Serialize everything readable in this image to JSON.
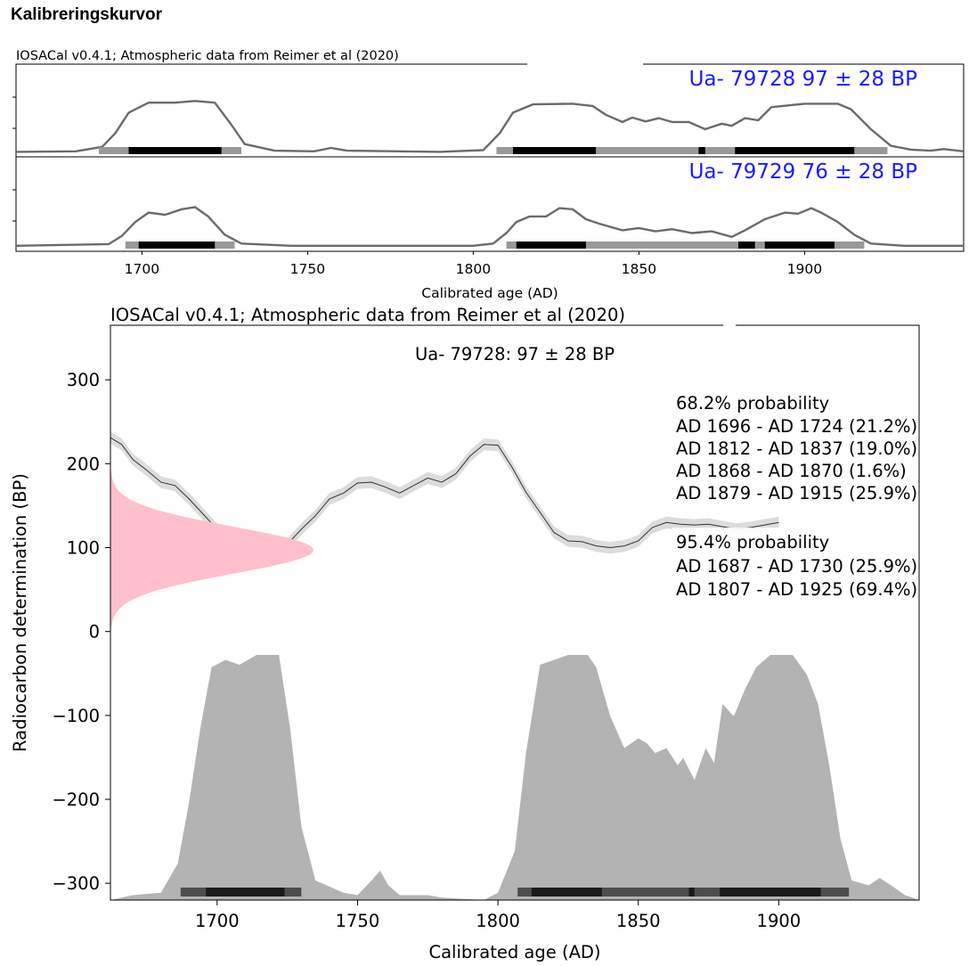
{
  "page": {
    "heading": "Kalibreringskurvor"
  },
  "chart_data": [
    {
      "type": "area",
      "title": "IOSACal v0.4.1; Atmospheric data from Reimer et al (2020)",
      "xlabel": "Calibrated age (AD)",
      "ylabel": "",
      "xlim": [
        1662,
        1948
      ],
      "x_ticks": [
        1700,
        1750,
        1800,
        1850,
        1900
      ],
      "grid": false,
      "panels": [
        {
          "label": "Ua- 79728 97 ± 28 BP",
          "label_color": "#1a1aff",
          "curve": [
            [
              1662,
              0.01
            ],
            [
              1680,
              0.02
            ],
            [
              1688,
              0.1
            ],
            [
              1692,
              0.35
            ],
            [
              1696,
              0.72
            ],
            [
              1702,
              0.9
            ],
            [
              1710,
              0.9
            ],
            [
              1716,
              0.93
            ],
            [
              1722,
              0.9
            ],
            [
              1727,
              0.5
            ],
            [
              1731,
              0.15
            ],
            [
              1740,
              0.03
            ],
            [
              1752,
              0.02
            ],
            [
              1757,
              0.08
            ],
            [
              1762,
              0.03
            ],
            [
              1790,
              0.01
            ],
            [
              1803,
              0.04
            ],
            [
              1808,
              0.35
            ],
            [
              1812,
              0.72
            ],
            [
              1818,
              0.87
            ],
            [
              1830,
              0.88
            ],
            [
              1836,
              0.84
            ],
            [
              1840,
              0.68
            ],
            [
              1845,
              0.55
            ],
            [
              1848,
              0.63
            ],
            [
              1852,
              0.56
            ],
            [
              1856,
              0.62
            ],
            [
              1860,
              0.55
            ],
            [
              1865,
              0.55
            ],
            [
              1870,
              0.42
            ],
            [
              1875,
              0.52
            ],
            [
              1878,
              0.48
            ],
            [
              1882,
              0.62
            ],
            [
              1886,
              0.58
            ],
            [
              1890,
              0.82
            ],
            [
              1900,
              0.88
            ],
            [
              1910,
              0.88
            ],
            [
              1914,
              0.78
            ],
            [
              1920,
              0.42
            ],
            [
              1926,
              0.12
            ],
            [
              1932,
              0.05
            ],
            [
              1938,
              0.03
            ],
            [
              1942,
              0.06
            ],
            [
              1948,
              0.02
            ]
          ],
          "range_68": [
            [
              1696,
              1724
            ],
            [
              1812,
              1837
            ],
            [
              1868,
              1870
            ],
            [
              1879,
              1915
            ]
          ],
          "range_95": [
            [
              1687,
              1730
            ],
            [
              1807,
              1925
            ]
          ]
        },
        {
          "label": "Ua- 79729 76 ± 28 BP",
          "label_color": "#1a1aff",
          "curve": [
            [
              1662,
              0.02
            ],
            [
              1690,
              0.05
            ],
            [
              1694,
              0.2
            ],
            [
              1698,
              0.45
            ],
            [
              1702,
              0.62
            ],
            [
              1707,
              0.58
            ],
            [
              1712,
              0.68
            ],
            [
              1716,
              0.72
            ],
            [
              1720,
              0.55
            ],
            [
              1725,
              0.22
            ],
            [
              1730,
              0.06
            ],
            [
              1745,
              0.02
            ],
            [
              1800,
              0.02
            ],
            [
              1806,
              0.06
            ],
            [
              1810,
              0.25
            ],
            [
              1813,
              0.45
            ],
            [
              1817,
              0.55
            ],
            [
              1822,
              0.55
            ],
            [
              1826,
              0.7
            ],
            [
              1830,
              0.68
            ],
            [
              1834,
              0.5
            ],
            [
              1838,
              0.42
            ],
            [
              1845,
              0.3
            ],
            [
              1850,
              0.34
            ],
            [
              1855,
              0.28
            ],
            [
              1860,
              0.32
            ],
            [
              1866,
              0.25
            ],
            [
              1872,
              0.28
            ],
            [
              1878,
              0.18
            ],
            [
              1882,
              0.3
            ],
            [
              1888,
              0.5
            ],
            [
              1894,
              0.62
            ],
            [
              1898,
              0.6
            ],
            [
              1902,
              0.7
            ],
            [
              1905,
              0.62
            ],
            [
              1910,
              0.45
            ],
            [
              1915,
              0.22
            ],
            [
              1920,
              0.06
            ],
            [
              1930,
              0.02
            ],
            [
              1948,
              0.02
            ]
          ],
          "range_68": [
            [
              1699,
              1722
            ],
            [
              1813,
              1834
            ],
            [
              1880,
              1885
            ],
            [
              1888,
              1909
            ]
          ],
          "range_95": [
            [
              1695,
              1728
            ],
            [
              1810,
              1918
            ]
          ]
        }
      ]
    },
    {
      "type": "area",
      "title": "IOSACal v0.4.1; Atmospheric data from Reimer et al (2020)",
      "subtitle": "Ua- 79728: 97 ± 28 BP",
      "xlabel": "Calibrated age (AD)",
      "ylabel": "Radiocarbon determination (BP)",
      "xlim": [
        1662,
        1950
      ],
      "ylim": [
        -320,
        365
      ],
      "x_ticks": [
        1700,
        1750,
        1800,
        1850,
        1900
      ],
      "y_ticks": [
        300,
        200,
        100,
        0,
        -100,
        -200,
        -300
      ],
      "grid": false,
      "measurement": {
        "mean_bp": 97,
        "sigma": 28,
        "color": "#ffc0cb"
      },
      "calibration_curve": [
        [
          1662,
          231
        ],
        [
          1666,
          223
        ],
        [
          1670,
          205
        ],
        [
          1675,
          192
        ],
        [
          1680,
          178
        ],
        [
          1685,
          174
        ],
        [
          1690,
          158
        ],
        [
          1695,
          140
        ],
        [
          1700,
          122
        ],
        [
          1705,
          108
        ],
        [
          1710,
          106
        ],
        [
          1715,
          101
        ],
        [
          1720,
          96
        ],
        [
          1725,
          104
        ],
        [
          1730,
          122
        ],
        [
          1735,
          138
        ],
        [
          1740,
          158
        ],
        [
          1745,
          165
        ],
        [
          1750,
          177
        ],
        [
          1755,
          178
        ],
        [
          1760,
          172
        ],
        [
          1765,
          165
        ],
        [
          1770,
          174
        ],
        [
          1775,
          183
        ],
        [
          1780,
          178
        ],
        [
          1785,
          188
        ],
        [
          1790,
          209
        ],
        [
          1795,
          223
        ],
        [
          1800,
          222
        ],
        [
          1805,
          196
        ],
        [
          1810,
          166
        ],
        [
          1815,
          142
        ],
        [
          1820,
          118
        ],
        [
          1825,
          108
        ],
        [
          1830,
          107
        ],
        [
          1835,
          102
        ],
        [
          1840,
          100
        ],
        [
          1845,
          102
        ],
        [
          1850,
          108
        ],
        [
          1855,
          124
        ],
        [
          1860,
          130
        ],
        [
          1865,
          128
        ],
        [
          1870,
          127
        ],
        [
          1875,
          128
        ],
        [
          1880,
          125
        ],
        [
          1885,
          122
        ],
        [
          1890,
          124
        ],
        [
          1895,
          127
        ],
        [
          1900,
          130
        ]
      ],
      "probability_distribution": [
        [
          1662,
          0
        ],
        [
          1670,
          0.02
        ],
        [
          1680,
          0.03
        ],
        [
          1686,
          0.15
        ],
        [
          1690,
          0.4
        ],
        [
          1694,
          0.7
        ],
        [
          1698,
          0.95
        ],
        [
          1703,
          0.98
        ],
        [
          1708,
          0.96
        ],
        [
          1714,
          1.0
        ],
        [
          1722,
          1.0
        ],
        [
          1726,
          0.7
        ],
        [
          1730,
          0.3
        ],
        [
          1735,
          0.08
        ],
        [
          1745,
          0.03
        ],
        [
          1750,
          0.02
        ],
        [
          1755,
          0.08
        ],
        [
          1758,
          0.12
        ],
        [
          1761,
          0.06
        ],
        [
          1765,
          0.02
        ],
        [
          1775,
          0.02
        ],
        [
          1780,
          0.01
        ],
        [
          1795,
          0.0
        ],
        [
          1800,
          0.03
        ],
        [
          1806,
          0.2
        ],
        [
          1810,
          0.6
        ],
        [
          1815,
          0.96
        ],
        [
          1820,
          0.98
        ],
        [
          1825,
          1.0
        ],
        [
          1832,
          1.0
        ],
        [
          1835,
          0.95
        ],
        [
          1840,
          0.75
        ],
        [
          1845,
          0.62
        ],
        [
          1850,
          0.66
        ],
        [
          1853,
          0.64
        ],
        [
          1856,
          0.6
        ],
        [
          1860,
          0.62
        ],
        [
          1864,
          0.55
        ],
        [
          1866,
          0.58
        ],
        [
          1870,
          0.49
        ],
        [
          1874,
          0.62
        ],
        [
          1877,
          0.56
        ],
        [
          1880,
          0.8
        ],
        [
          1884,
          0.75
        ],
        [
          1888,
          0.86
        ],
        [
          1892,
          0.95
        ],
        [
          1897,
          1.0
        ],
        [
          1905,
          1.0
        ],
        [
          1910,
          0.92
        ],
        [
          1914,
          0.8
        ],
        [
          1918,
          0.55
        ],
        [
          1922,
          0.25
        ],
        [
          1926,
          0.08
        ],
        [
          1932,
          0.06
        ],
        [
          1936,
          0.09
        ],
        [
          1940,
          0.06
        ],
        [
          1945,
          0.02
        ],
        [
          1950,
          0.0
        ]
      ],
      "range_68": [
        [
          1696,
          1724
        ],
        [
          1812,
          1837
        ],
        [
          1868,
          1870
        ],
        [
          1879,
          1915
        ]
      ],
      "range_95": [
        [
          1687,
          1730
        ],
        [
          1807,
          1925
        ]
      ],
      "annotations": {
        "p68_title": "68.2% probability",
        "p68": [
          "AD 1696 - AD 1724 (21.2%)",
          "AD 1812 - AD 1837 (19.0%)",
          "AD 1868 - AD 1870 (1.6%)",
          "AD 1879 - AD 1915 (25.9%)"
        ],
        "p95_title": "95.4% probability",
        "p95": [
          "AD 1687 - AD 1730 (25.9%)",
          "AD 1807 - AD 1925 (69.4%)"
        ]
      }
    }
  ]
}
